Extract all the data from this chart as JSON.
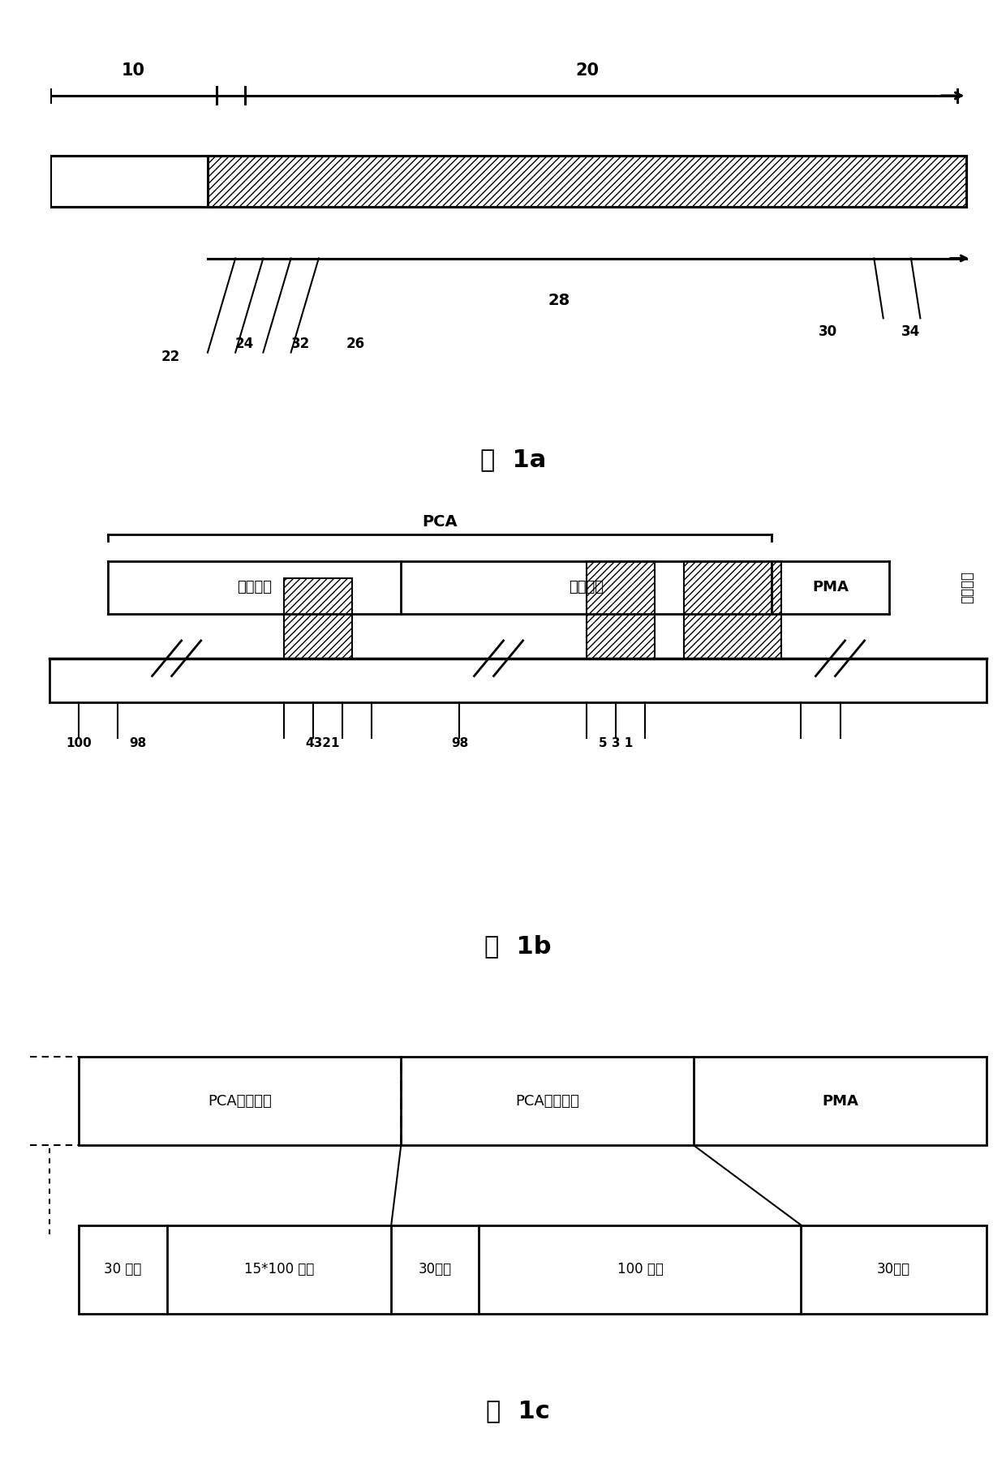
{
  "fig_width": 12.4,
  "fig_height": 18.2,
  "bg_color": "#ffffff",
  "fig1a": {
    "title": "图  1a",
    "label10": "10",
    "label20": "20",
    "label28": "28",
    "label22": "22",
    "label24": "24",
    "label32": "32",
    "label26": "26",
    "label30": "30",
    "label34": "34"
  },
  "fig1b": {
    "title": "图  1b",
    "label_PCA": "PCA",
    "label_test": "测试区域",
    "label_calc": "计算区域",
    "label_PMA": "PMA",
    "label_lead": "导入区域",
    "label100": "100",
    "label98a": "98",
    "label4321": "4321",
    "label98b": "98",
    "label531": "5 3 1"
  },
  "fig1c": {
    "title": "图  1c",
    "row1_0": "PCA测试区域",
    "row1_1": "PCA计算区域",
    "row1_2": "PMA",
    "row2_0": "30 扇区",
    "row2_1": "15*100 扇区",
    "row2_2": "30扇区",
    "row2_3": "100 扇区",
    "row2_4": "30扇区"
  }
}
